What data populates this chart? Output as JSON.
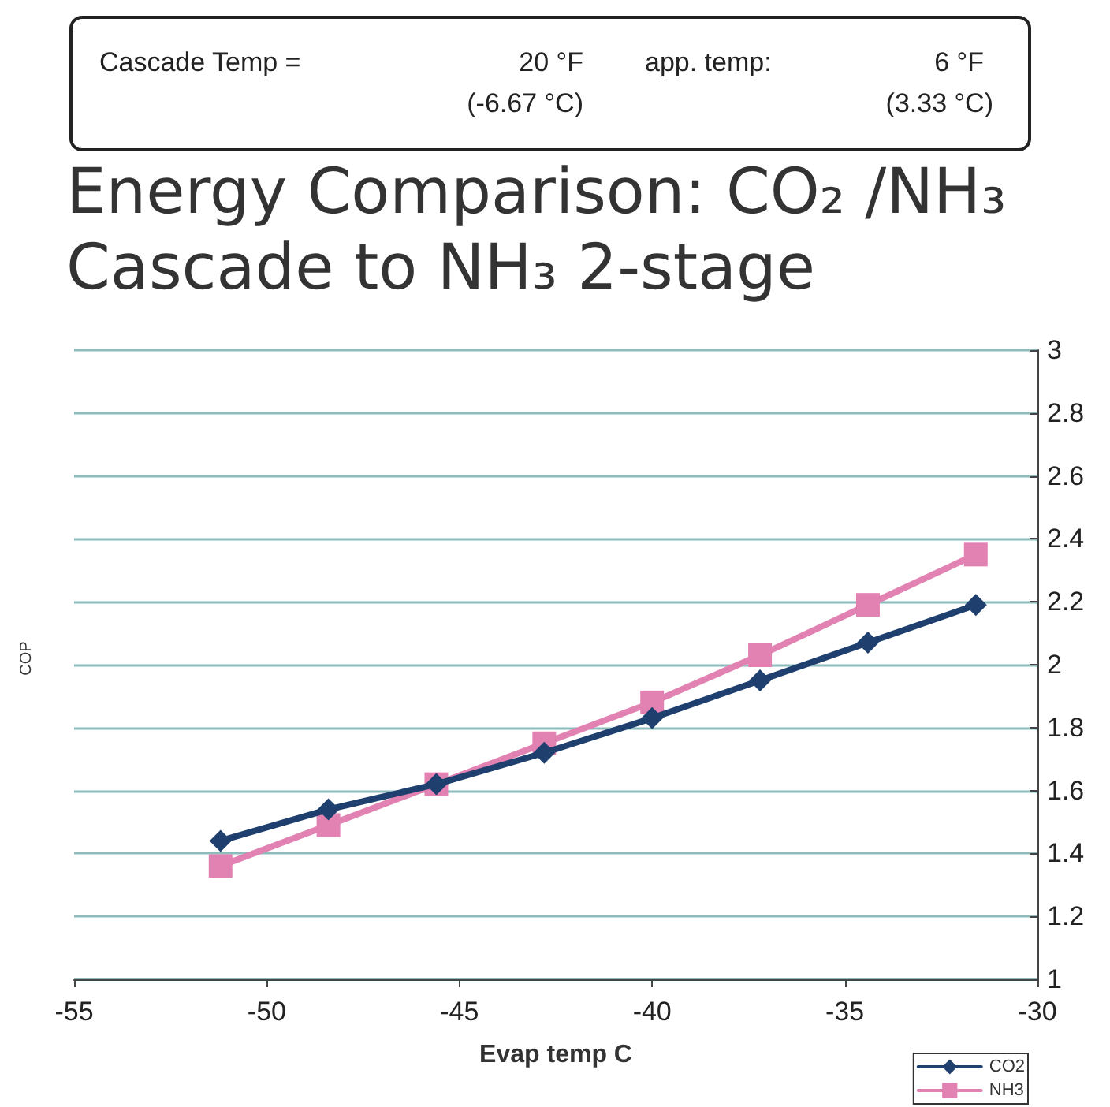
{
  "chart_data": {
    "type": "line",
    "title": "Energy Comparison: CO₂ /NH₃ Cascade to NH₃ 2-stage",
    "annotations": [
      "Cascade Temp =",
      "20 °F",
      "(-6.67 °C)",
      "app. temp:",
      "6 °F",
      "(3.33 °C)"
    ],
    "xlabel": "Evap temp C",
    "ylabel": "COP",
    "x": [
      -51.2,
      -48.4,
      -45.6,
      -42.8,
      -40,
      -37.2,
      -34.4,
      -31.6
    ],
    "series": [
      {
        "name": "CO2",
        "color": "#1f3f6e",
        "marker": "diamond",
        "values": [
          1.44,
          1.54,
          1.62,
          1.72,
          1.83,
          1.95,
          2.07,
          2.19
        ]
      },
      {
        "name": "NH3",
        "color": "#e282b2",
        "marker": "square",
        "values": [
          1.36,
          1.49,
          1.62,
          1.75,
          1.88,
          2.03,
          2.19,
          2.35
        ]
      }
    ],
    "xlim": [
      -55,
      -30
    ],
    "xticks": [
      -55,
      -50,
      -45,
      -40,
      -35,
      -30
    ],
    "ylim": [
      1,
      3
    ],
    "yticks": [
      1,
      1.2,
      1.4,
      1.6,
      1.8,
      2,
      2.2,
      2.4,
      2.6,
      2.8,
      3
    ],
    "grid": "y",
    "legend": "bottom right",
    "line_style": "solid"
  }
}
